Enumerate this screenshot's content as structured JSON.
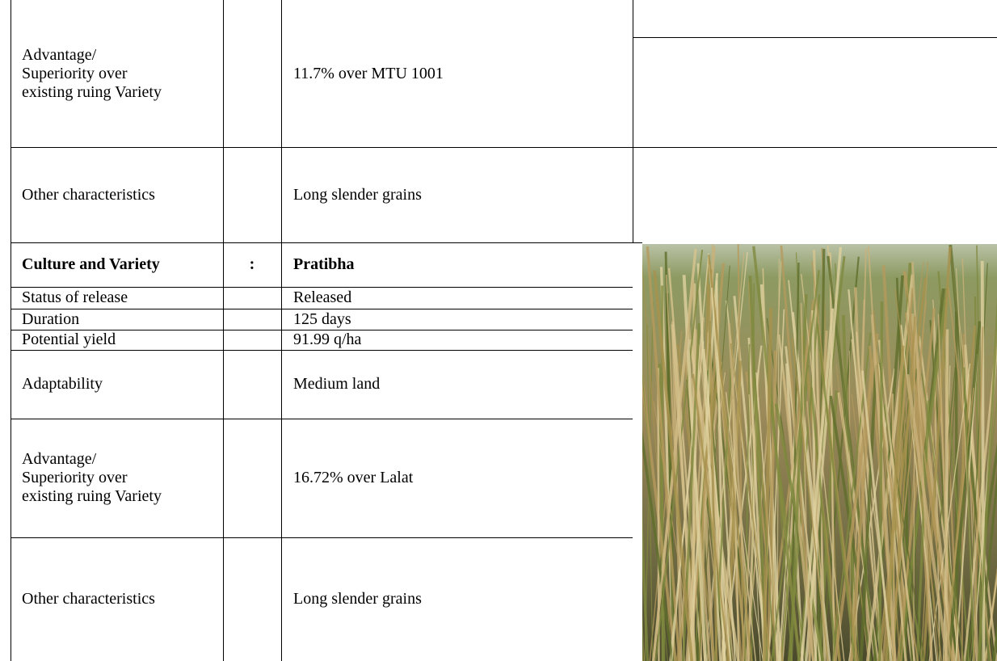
{
  "table": {
    "rows": [
      {
        "label": "Advantage/ Superiority over existing ruing Variety",
        "value": "11.7% over MTU 1001"
      },
      {
        "label": "Other characteristics",
        "value": "Long slender grains"
      },
      {
        "label": "Culture and Variety",
        "colon": ":",
        "value": "Pratibha"
      },
      {
        "label": "Status of release",
        "value": "Released"
      },
      {
        "label": "Duration",
        "value": "125 days"
      },
      {
        "label": "Potential yield",
        "value": "91.99 q/ha"
      },
      {
        "label": "Adaptability",
        "value": "Medium land"
      },
      {
        "label": "Advantage/ Superiority over existing ruing Variety",
        "value": "16.72% over Lalat"
      },
      {
        "label": "Other characteristics",
        "value": "Long slender grains"
      }
    ]
  }
}
